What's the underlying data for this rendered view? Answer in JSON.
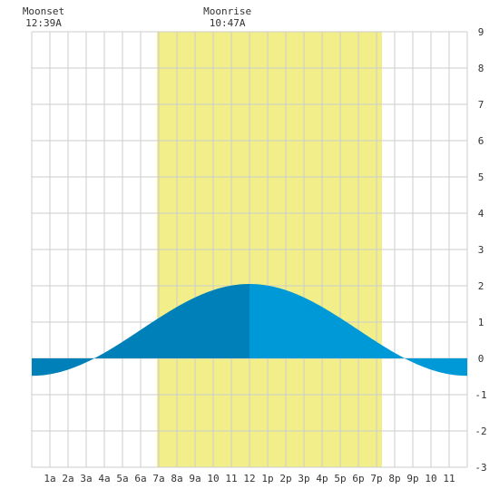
{
  "chart_data": {
    "type": "area",
    "title": "",
    "xlabel": "",
    "ylabel": "",
    "x_range_hours": [
      0,
      24
    ],
    "ylim": [
      -3,
      9
    ],
    "y_ticks": [
      -3,
      -2,
      -1,
      0,
      1,
      2,
      3,
      4,
      5,
      6,
      7,
      8,
      9
    ],
    "x_ticks": [
      {
        "hour": 1,
        "label": "1a"
      },
      {
        "hour": 2,
        "label": "2a"
      },
      {
        "hour": 3,
        "label": "3a"
      },
      {
        "hour": 4,
        "label": "4a"
      },
      {
        "hour": 5,
        "label": "5a"
      },
      {
        "hour": 6,
        "label": "6a"
      },
      {
        "hour": 7,
        "label": "7a"
      },
      {
        "hour": 8,
        "label": "8a"
      },
      {
        "hour": 9,
        "label": "9a"
      },
      {
        "hour": 10,
        "label": "10"
      },
      {
        "hour": 11,
        "label": "11"
      },
      {
        "hour": 12,
        "label": "12"
      },
      {
        "hour": 13,
        "label": "1p"
      },
      {
        "hour": 14,
        "label": "2p"
      },
      {
        "hour": 15,
        "label": "3p"
      },
      {
        "hour": 16,
        "label": "4p"
      },
      {
        "hour": 17,
        "label": "5p"
      },
      {
        "hour": 18,
        "label": "6p"
      },
      {
        "hour": 19,
        "label": "7p"
      },
      {
        "hour": 20,
        "label": "8p"
      },
      {
        "hour": 21,
        "label": "9p"
      },
      {
        "hour": 22,
        "label": "10"
      },
      {
        "hour": 23,
        "label": "11"
      }
    ],
    "grid": true,
    "daylight": {
      "start_hour": 6.9,
      "end_hour": 19.3
    },
    "tide_extremes": [
      {
        "hour": 0.0,
        "value": -0.48
      },
      {
        "hour": 12.0,
        "value": 2.05
      },
      {
        "hour": 24.0,
        "value": -0.48
      }
    ],
    "crossing_hours": [
      2.9,
      20.9
    ],
    "events": [
      {
        "name": "Moonset",
        "time": "12:39A",
        "hour": 0.65
      },
      {
        "name": "Moonrise",
        "time": "10:47A",
        "hour": 10.78
      }
    ],
    "colors": {
      "background": "#ffffff",
      "grid": "#cccccc",
      "daylight": "#f2ef8a",
      "tide_dark": "#0080b8",
      "tide_light": "#0099d8",
      "text": "#333333"
    }
  }
}
